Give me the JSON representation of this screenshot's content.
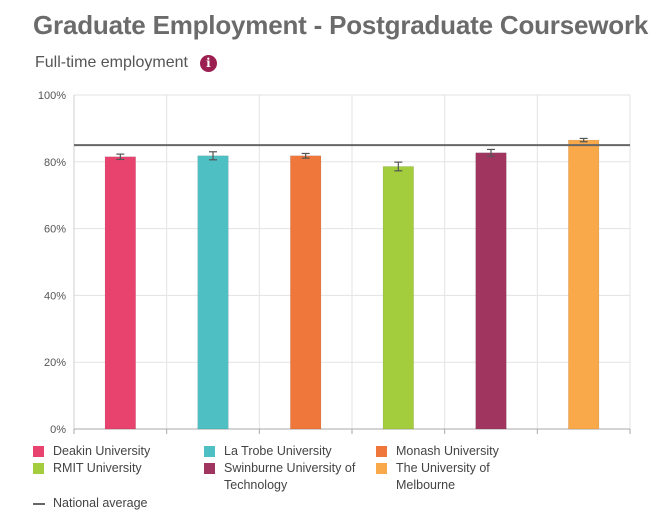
{
  "header": {
    "title": "Graduate Employment - Postgraduate Coursework",
    "subtitle": "Full-time employment",
    "info_icon": "info-icon"
  },
  "chart_data": {
    "type": "bar",
    "categories": [
      "Deakin University",
      "La Trobe University",
      "Monash University",
      "RMIT University",
      "Swinburne University of Technology",
      "The University of Melbourne"
    ],
    "values": [
      81.5,
      81.8,
      81.8,
      78.6,
      82.7,
      86.5
    ],
    "error_low": [
      80.7,
      80.6,
      81.1,
      77.3,
      81.7,
      86.0
    ],
    "error_high": [
      82.3,
      83.0,
      82.5,
      79.9,
      83.7,
      87.0
    ],
    "colors": [
      "#e8436f",
      "#4ebfc2",
      "#f0773b",
      "#a3cd3c",
      "#a03660",
      "#f9a94a"
    ],
    "ylim": [
      0,
      100
    ],
    "yticks": [
      "0%",
      "20%",
      "40%",
      "60%",
      "80%",
      "100%"
    ],
    "ytick_values": [
      0,
      20,
      40,
      60,
      80,
      100
    ],
    "national_average": 85,
    "national_average_color": "#666666",
    "grid": true,
    "legend_position": "bottom"
  },
  "legend": {
    "items": [
      {
        "label_lines": [
          "Deakin University"
        ],
        "color": "#e8436f"
      },
      {
        "label_lines": [
          "La Trobe University"
        ],
        "color": "#4ebfc2"
      },
      {
        "label_lines": [
          "Monash University"
        ],
        "color": "#f0773b"
      },
      {
        "label_lines": [
          "RMIT University"
        ],
        "color": "#a3cd3c"
      },
      {
        "label_lines": [
          "Swinburne University of",
          "Technology"
        ],
        "color": "#a03660"
      },
      {
        "label_lines": [
          "The University of",
          "Melbourne"
        ],
        "color": "#f9a94a"
      }
    ],
    "national_average_label": "National average"
  }
}
